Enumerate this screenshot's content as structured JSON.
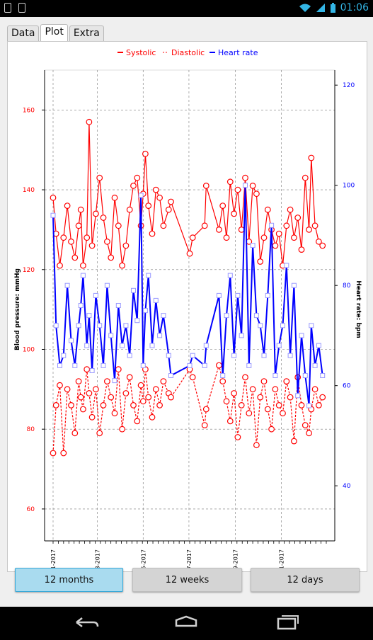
{
  "status_bar": {
    "time": "01:06"
  },
  "tabs": [
    {
      "label": "Data",
      "active": false
    },
    {
      "label": "Plot",
      "active": true
    },
    {
      "label": "Extra",
      "active": false
    }
  ],
  "range_buttons": [
    {
      "label": "12 months",
      "selected": true
    },
    {
      "label": "12 weeks",
      "selected": false
    },
    {
      "label": "12 days",
      "selected": false
    }
  ],
  "colors": {
    "systolic": "#ff0000",
    "diastolic": "#ff0000",
    "heart_rate": "#0000ff",
    "selected_button": "#a9dbef",
    "accent": "#33b5e5"
  },
  "chart_data": {
    "type": "line",
    "title": "",
    "legend": {
      "placement": "top-center",
      "entries": [
        "Systolic",
        "Diastolic",
        "Heart rate"
      ]
    },
    "x": {
      "label": "",
      "ticks": [
        "01-2017",
        "03-2017",
        "05-2017",
        "07-2017",
        "09-2017",
        "11-2017"
      ],
      "range": [
        "2017-01-01",
        "2017-12-31"
      ]
    },
    "y_left": {
      "label": "Blood pressure: mmHg",
      "ticks": [
        60,
        80,
        100,
        120,
        140,
        160
      ],
      "range": [
        52,
        170
      ]
    },
    "y_right": {
      "label": "Heart rate: bpm",
      "ticks": [
        40,
        60,
        80,
        100,
        120
      ],
      "range": [
        29,
        123
      ]
    },
    "grid": true,
    "series": [
      {
        "name": "Systolic",
        "style": "solid line, open circle markers",
        "axis": "left",
        "x": [
          "2017-01-01",
          "2017-01-05",
          "2017-01-10",
          "2017-01-15",
          "2017-01-20",
          "2017-01-25",
          "2017-01-30",
          "2017-02-04",
          "2017-02-07",
          "2017-02-10",
          "2017-02-15",
          "2017-02-18",
          "2017-02-22",
          "2017-02-27",
          "2017-03-04",
          "2017-03-09",
          "2017-03-14",
          "2017-03-19",
          "2017-03-24",
          "2017-03-29",
          "2017-04-03",
          "2017-04-08",
          "2017-04-13",
          "2017-04-18",
          "2017-04-23",
          "2017-04-28",
          "2017-05-01",
          "2017-05-04",
          "2017-05-08",
          "2017-05-13",
          "2017-05-18",
          "2017-05-23",
          "2017-05-28",
          "2017-06-04",
          "2017-06-07",
          "2017-07-02",
          "2017-07-06",
          "2017-07-22",
          "2017-07-24",
          "2017-08-10",
          "2017-08-15",
          "2017-08-20",
          "2017-08-25",
          "2017-08-30",
          "2017-09-04",
          "2017-09-09",
          "2017-09-14",
          "2017-09-19",
          "2017-09-24",
          "2017-09-29",
          "2017-10-04",
          "2017-10-09",
          "2017-10-14",
          "2017-10-19",
          "2017-10-24",
          "2017-10-29",
          "2017-11-03",
          "2017-11-08",
          "2017-11-13",
          "2017-11-18",
          "2017-11-23",
          "2017-11-28",
          "2017-12-03",
          "2017-12-08",
          "2017-12-11",
          "2017-12-16",
          "2017-12-21",
          "2017-12-26"
        ],
        "values": [
          138,
          129,
          121,
          128,
          136,
          127,
          123,
          131,
          135,
          121,
          128,
          157,
          126,
          134,
          143,
          133,
          127,
          123,
          138,
          131,
          121,
          126,
          135,
          141,
          143,
          131,
          139,
          149,
          136,
          129,
          140,
          138,
          131,
          135,
          137,
          124,
          128,
          131,
          141,
          130,
          136,
          128,
          142,
          134,
          140,
          130,
          143,
          127,
          141,
          139,
          122,
          128,
          135,
          130,
          126,
          129,
          121,
          131,
          135,
          128,
          133,
          125,
          143,
          130,
          148,
          131,
          127,
          126
        ]
      },
      {
        "name": "Diastolic",
        "style": "dashed line, open circle markers",
        "axis": "left",
        "x": [
          "2017-01-01",
          "2017-01-05",
          "2017-01-10",
          "2017-01-15",
          "2017-01-20",
          "2017-01-25",
          "2017-01-30",
          "2017-02-04",
          "2017-02-07",
          "2017-02-10",
          "2017-02-15",
          "2017-02-18",
          "2017-02-22",
          "2017-02-27",
          "2017-03-04",
          "2017-03-09",
          "2017-03-14",
          "2017-03-19",
          "2017-03-24",
          "2017-03-29",
          "2017-04-03",
          "2017-04-08",
          "2017-04-13",
          "2017-04-18",
          "2017-04-23",
          "2017-04-28",
          "2017-05-01",
          "2017-05-04",
          "2017-05-08",
          "2017-05-13",
          "2017-05-18",
          "2017-05-23",
          "2017-05-28",
          "2017-06-04",
          "2017-06-07",
          "2017-07-02",
          "2017-07-06",
          "2017-07-22",
          "2017-07-24",
          "2017-08-10",
          "2017-08-15",
          "2017-08-20",
          "2017-08-25",
          "2017-08-30",
          "2017-09-04",
          "2017-09-09",
          "2017-09-14",
          "2017-09-19",
          "2017-09-24",
          "2017-09-29",
          "2017-10-04",
          "2017-10-09",
          "2017-10-14",
          "2017-10-19",
          "2017-10-24",
          "2017-10-29",
          "2017-11-03",
          "2017-11-08",
          "2017-11-13",
          "2017-11-18",
          "2017-11-23",
          "2017-11-28",
          "2017-12-03",
          "2017-12-08",
          "2017-12-11",
          "2017-12-16",
          "2017-12-21",
          "2017-12-26"
        ],
        "values": [
          74,
          86,
          91,
          74,
          90,
          86,
          79,
          92,
          88,
          85,
          95,
          89,
          83,
          90,
          79,
          86,
          92,
          88,
          84,
          95,
          80,
          89,
          93,
          86,
          82,
          91,
          87,
          95,
          88,
          83,
          90,
          86,
          92,
          89,
          88,
          95,
          93,
          81,
          85,
          96,
          92,
          87,
          82,
          89,
          78,
          86,
          93,
          84,
          90,
          76,
          88,
          92,
          85,
          80,
          90,
          86,
          84,
          92,
          88,
          77,
          93,
          86,
          81,
          79,
          85,
          90,
          86,
          88
        ]
      },
      {
        "name": "Heart rate",
        "style": "solid line, open square markers",
        "axis": "right",
        "x": [
          "2017-01-01",
          "2017-01-05",
          "2017-01-10",
          "2017-01-15",
          "2017-01-20",
          "2017-01-25",
          "2017-01-30",
          "2017-02-04",
          "2017-02-07",
          "2017-02-10",
          "2017-02-15",
          "2017-02-18",
          "2017-02-22",
          "2017-02-27",
          "2017-03-04",
          "2017-03-09",
          "2017-03-14",
          "2017-03-19",
          "2017-03-24",
          "2017-03-29",
          "2017-04-03",
          "2017-04-08",
          "2017-04-13",
          "2017-04-18",
          "2017-04-23",
          "2017-04-28",
          "2017-05-01",
          "2017-05-04",
          "2017-05-08",
          "2017-05-13",
          "2017-05-18",
          "2017-05-23",
          "2017-05-28",
          "2017-06-04",
          "2017-06-07",
          "2017-07-02",
          "2017-07-06",
          "2017-07-22",
          "2017-07-24",
          "2017-08-10",
          "2017-08-15",
          "2017-08-20",
          "2017-08-25",
          "2017-08-30",
          "2017-09-04",
          "2017-09-09",
          "2017-09-14",
          "2017-09-19",
          "2017-09-24",
          "2017-09-29",
          "2017-10-04",
          "2017-10-09",
          "2017-10-14",
          "2017-10-19",
          "2017-10-24",
          "2017-10-29",
          "2017-11-03",
          "2017-11-08",
          "2017-11-13",
          "2017-11-18",
          "2017-11-23",
          "2017-11-28",
          "2017-12-03",
          "2017-12-08",
          "2017-12-11",
          "2017-12-16",
          "2017-12-21",
          "2017-12-26"
        ],
        "values": [
          94,
          72,
          64,
          66,
          80,
          69,
          64,
          72,
          76,
          82,
          68,
          74,
          63,
          78,
          72,
          64,
          80,
          70,
          61,
          76,
          68,
          72,
          66,
          79,
          73,
          98,
          64,
          75,
          82,
          68,
          77,
          70,
          74,
          66,
          62,
          64,
          66,
          64,
          68,
          78,
          62,
          74,
          82,
          66,
          78,
          70,
          100,
          64,
          88,
          74,
          72,
          66,
          78,
          92,
          62,
          68,
          72,
          84,
          66,
          80,
          58,
          70,
          62,
          56,
          72,
          64,
          68,
          62
        ]
      }
    ]
  }
}
